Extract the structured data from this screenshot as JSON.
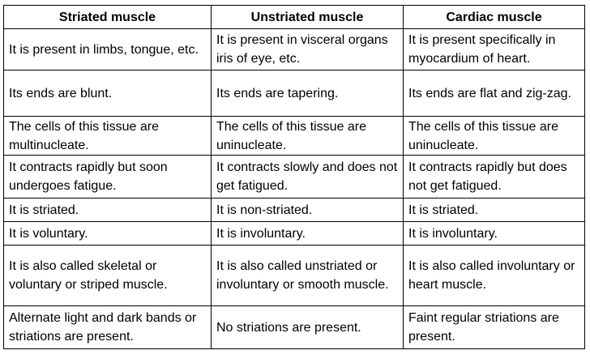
{
  "table": {
    "headers": [
      "Striated muscle",
      "Unstriated muscle",
      "Cardiac muscle"
    ],
    "rows": [
      [
        "It is present in limbs, tongue, etc.",
        "It is present in visceral organs iris of eye, etc.",
        "It is present specifically in myocardium of heart."
      ],
      [
        "Its ends are blunt.",
        "Its ends are tapering.",
        "Its ends are flat and zig-zag."
      ],
      [
        "The cells of this tissue are multinucleate.",
        "The cells of this tissue are uninucleate.",
        "The cells of this tissue are uninucleate."
      ],
      [
        "It contracts rapidly but soon undergoes fatigue.",
        "It contracts slowly and does not get fatigued.",
        "It contracts rapidly but does not get fatigued."
      ],
      [
        "It is striated.",
        "It is non-striated.",
        "It is striated."
      ],
      [
        "It is voluntary.",
        "It is involuntary.",
        "It is involuntary."
      ],
      [
        "It is also called skeletal or voluntary or striped muscle.",
        "It is also called unstriated or involuntary or smooth muscle.",
        "It is also called involuntary or heart muscle."
      ],
      [
        "Alternate light and dark bands or striations are present.",
        "No striations are present.",
        "Faint regular striations are present."
      ]
    ]
  }
}
